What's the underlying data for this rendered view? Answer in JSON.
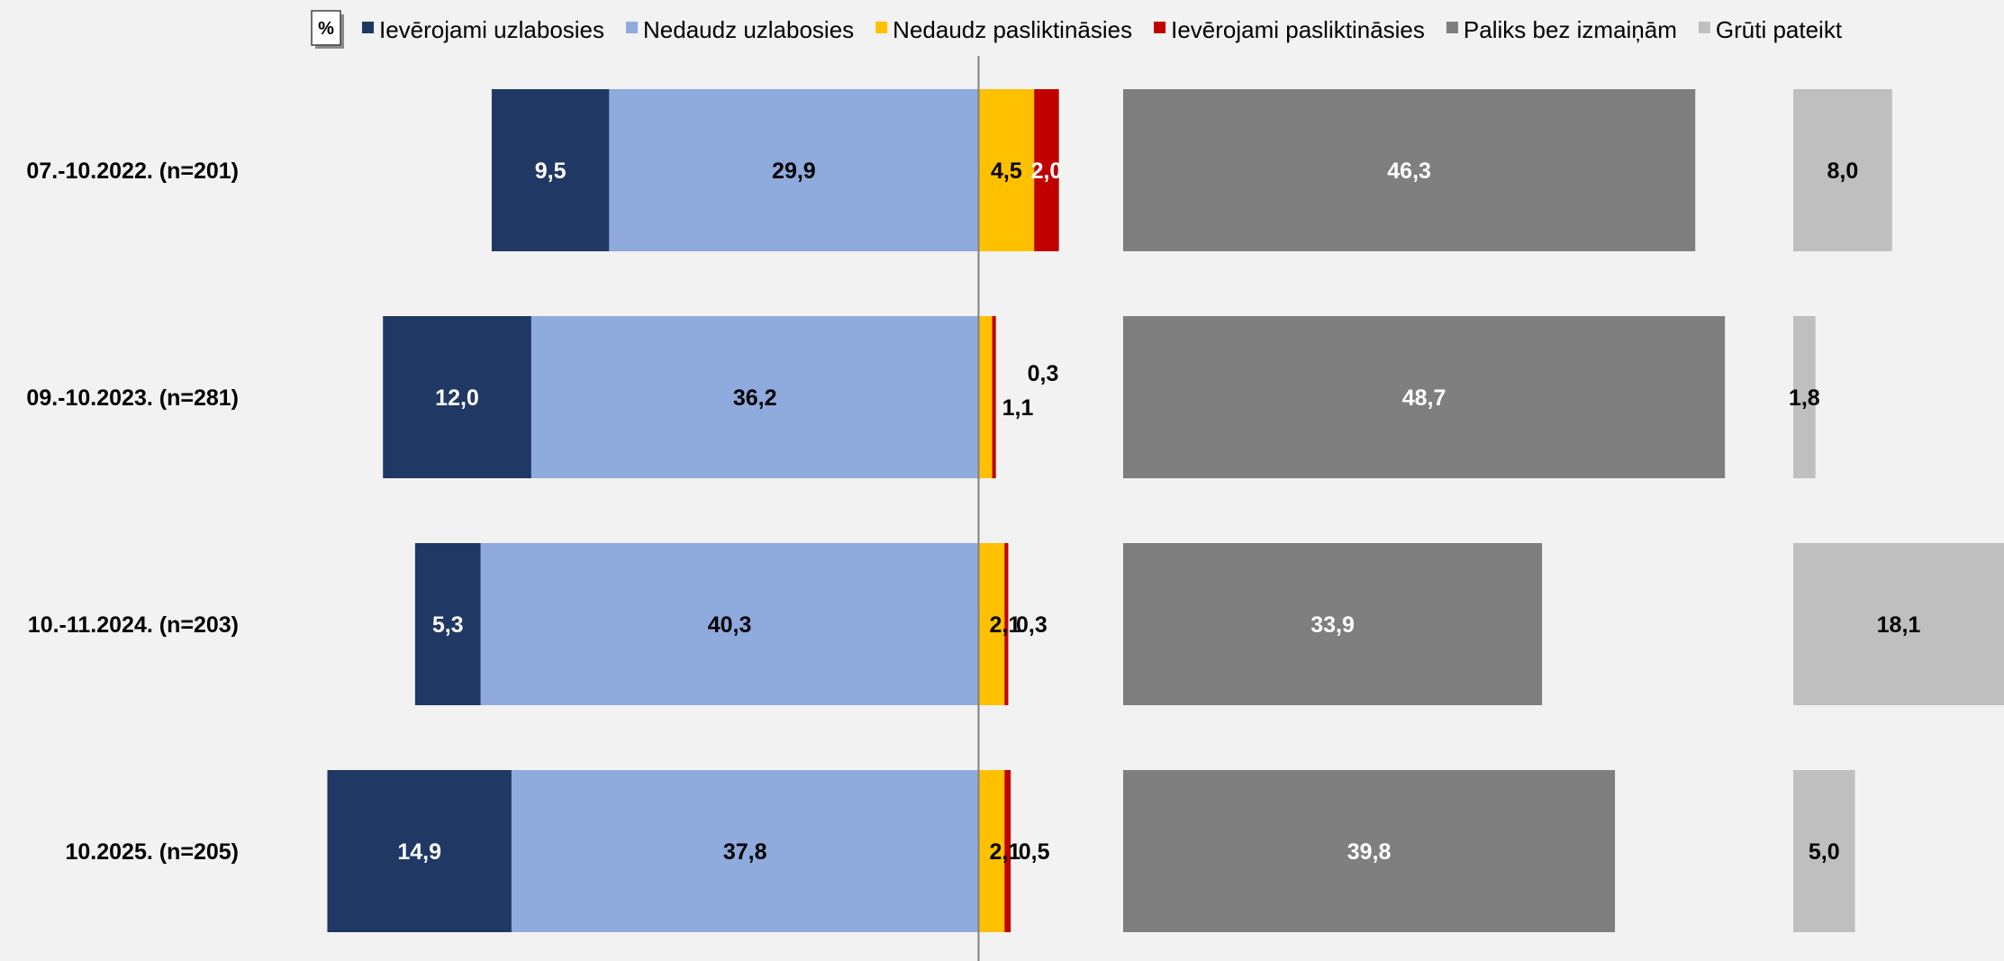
{
  "chart_data": {
    "type": "bar",
    "orientation": "horizontal",
    "stacked": "diverging",
    "unit": "%",
    "categories": [
      "07.-10.2022. (n=201)",
      "09.-10.2023. (n=281)",
      "10.-11.2024. (n=203)",
      "10.2025. (n=205)"
    ],
    "series": [
      {
        "name": "Ievērojami uzlabosies",
        "color": "#203864",
        "label_color": "#ffffff",
        "side": "left",
        "values": [
          9.5,
          12.0,
          5.3,
          14.9
        ],
        "labels": [
          "9,5",
          "12,0",
          "5,3",
          "14,9"
        ]
      },
      {
        "name": "Nedaudz uzlabosies",
        "color": "#8faadc",
        "label_color": "#000000",
        "side": "left",
        "values": [
          29.9,
          36.2,
          40.3,
          37.8
        ],
        "labels": [
          "29,9",
          "36,2",
          "40,3",
          "37,8"
        ]
      },
      {
        "name": "Nedaudz pasliktināsies",
        "color": "#ffc000",
        "label_color": "#000000",
        "side": "right",
        "values": [
          4.5,
          1.1,
          2.1,
          2.1
        ],
        "labels": [
          "4,5",
          "1,1",
          "2,1",
          "2,1"
        ]
      },
      {
        "name": "Ievērojami pasliktināsies",
        "color": "#c00000",
        "label_color": "#ffffff",
        "side": "right",
        "values": [
          2.0,
          0.3,
          0.3,
          0.5
        ],
        "labels": [
          "2,0",
          "0,3",
          "0,3",
          "0,5"
        ]
      },
      {
        "name": "Paliks bez izmaiņām",
        "color": "#7f7f7f",
        "label_color": "#ffffff",
        "side": "separate",
        "values": [
          46.3,
          48.7,
          33.9,
          39.8
        ],
        "labels": [
          "46,3",
          "48,7",
          "33,9",
          "39,8"
        ]
      },
      {
        "name": "Grūti pateikt",
        "color": "#bfbfbf",
        "label_color": "#000000",
        "side": "separate",
        "values": [
          8.0,
          1.8,
          18.1,
          5.0
        ],
        "labels": [
          "8,0",
          "1,8",
          "18,1",
          "5,0"
        ]
      }
    ],
    "legend": "top",
    "grid": false
  }
}
